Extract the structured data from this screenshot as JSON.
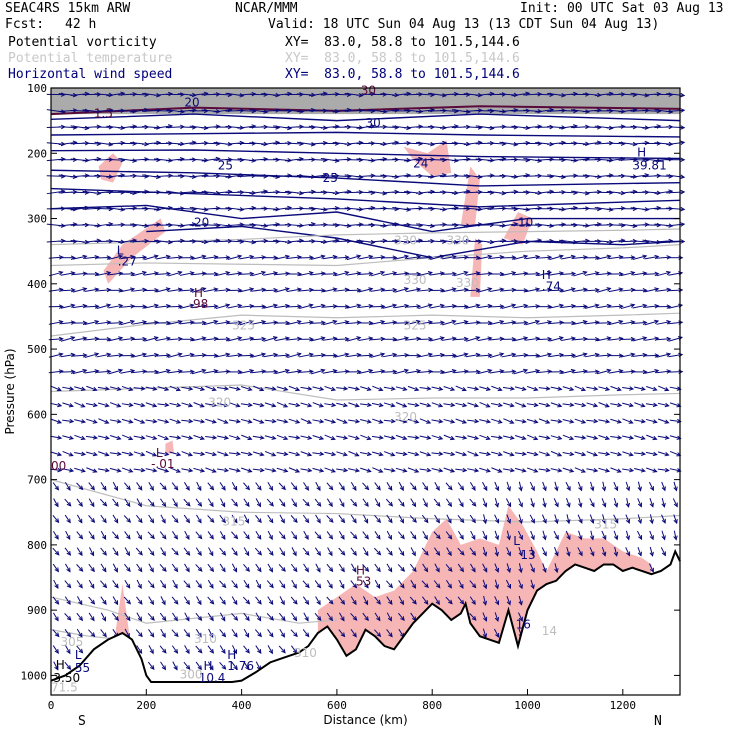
{
  "header": {
    "model": "SEAC4RS 15km ARW",
    "org": "NCAR/MMM",
    "init": "Init: 00 UTC Sat 03 Aug 13",
    "fcst_label": "Fcst:",
    "fcst_value": "42 h",
    "valid": "Valid: 18 UTC Sun 04 Aug 13 (13 CDT Sun 04 Aug 13)"
  },
  "fields": [
    {
      "name": "Potential vorticity",
      "xy": "XY=  83.0, 58.8 to 101.5,144.6",
      "color": "#000000"
    },
    {
      "name": "Potential temperature",
      "xy": "XY=  83.0, 58.8 to 101.5,144.6",
      "color": "#c8c8c8"
    },
    {
      "name": "Horizontal wind speed",
      "xy": "XY=  83.0, 58.8 to 101.5,144.6",
      "color": "#00007a"
    }
  ],
  "chart_data": {
    "type": "cross-section",
    "xlabel": "Distance (km)",
    "ylabel": "Pressure (hPa)",
    "xlim": [
      0,
      1320
    ],
    "ylim": [
      1030,
      100
    ],
    "x_ticks": [
      0,
      200,
      400,
      600,
      800,
      1000,
      1200
    ],
    "y_ticks": [
      100,
      200,
      300,
      400,
      500,
      600,
      700,
      800,
      900,
      1000
    ],
    "end_labels": {
      "left": "S",
      "right": "N"
    },
    "colors": {
      "wind": "#0a0a7a",
      "theta": "#bdbdbd",
      "pv_shade": "#f7b6b6",
      "terrain": "#000000",
      "pv_line": "#5a0a3a"
    },
    "terrain": [
      [
        0,
        1008
      ],
      [
        30,
        1000
      ],
      [
        60,
        985
      ],
      [
        90,
        960
      ],
      [
        120,
        945
      ],
      [
        150,
        935
      ],
      [
        170,
        945
      ],
      [
        190,
        975
      ],
      [
        200,
        1000
      ],
      [
        210,
        1010
      ],
      [
        260,
        1010
      ],
      [
        320,
        1010
      ],
      [
        380,
        1010
      ],
      [
        400,
        1008
      ],
      [
        430,
        995
      ],
      [
        460,
        980
      ],
      [
        480,
        975
      ],
      [
        500,
        970
      ],
      [
        520,
        965
      ],
      [
        540,
        955
      ],
      [
        560,
        935
      ],
      [
        580,
        925
      ],
      [
        600,
        945
      ],
      [
        620,
        970
      ],
      [
        640,
        960
      ],
      [
        660,
        930
      ],
      [
        680,
        940
      ],
      [
        700,
        955
      ],
      [
        720,
        960
      ],
      [
        740,
        940
      ],
      [
        760,
        920
      ],
      [
        780,
        905
      ],
      [
        800,
        890
      ],
      [
        820,
        900
      ],
      [
        840,
        915
      ],
      [
        860,
        905
      ],
      [
        870,
        890
      ],
      [
        880,
        920
      ],
      [
        900,
        940
      ],
      [
        920,
        945
      ],
      [
        940,
        950
      ],
      [
        960,
        900
      ],
      [
        980,
        955
      ],
      [
        1000,
        900
      ],
      [
        1020,
        870
      ],
      [
        1040,
        860
      ],
      [
        1060,
        855
      ],
      [
        1080,
        840
      ],
      [
        1100,
        830
      ],
      [
        1120,
        835
      ],
      [
        1140,
        840
      ],
      [
        1160,
        830
      ],
      [
        1180,
        830
      ],
      [
        1200,
        840
      ],
      [
        1220,
        835
      ],
      [
        1240,
        840
      ],
      [
        1260,
        845
      ],
      [
        1280,
        840
      ],
      [
        1300,
        830
      ],
      [
        1310,
        810
      ],
      [
        1320,
        825
      ]
    ],
    "theta_contours": [
      {
        "label": "330",
        "points": [
          [
            0,
            372
          ],
          [
            200,
            368
          ],
          [
            400,
            370
          ],
          [
            600,
            372
          ],
          [
            800,
            360
          ],
          [
            1000,
            350
          ],
          [
            1200,
            345
          ],
          [
            1320,
            340
          ]
        ]
      },
      {
        "label": "330",
        "points": [
          [
            0,
            340
          ],
          [
            200,
            336
          ],
          [
            400,
            332
          ],
          [
            600,
            325
          ],
          [
            800,
            322
          ],
          [
            1000,
            320
          ],
          [
            1200,
            318
          ],
          [
            1320,
            316
          ]
        ]
      },
      {
        "label": "325",
        "points": [
          [
            0,
            480
          ],
          [
            200,
            462
          ],
          [
            400,
            448
          ],
          [
            600,
            452
          ],
          [
            800,
            448
          ],
          [
            1000,
            452
          ],
          [
            1200,
            448
          ],
          [
            1320,
            445
          ]
        ]
      },
      {
        "label": "320",
        "points": [
          [
            0,
            565
          ],
          [
            200,
            560
          ],
          [
            400,
            555
          ],
          [
            600,
            578
          ],
          [
            800,
            575
          ],
          [
            1000,
            575
          ],
          [
            1200,
            570
          ],
          [
            1320,
            568
          ]
        ]
      },
      {
        "label": "315",
        "points": [
          [
            0,
            700
          ],
          [
            200,
            740
          ],
          [
            400,
            750
          ],
          [
            600,
            752
          ],
          [
            800,
            760
          ],
          [
            1000,
            765
          ],
          [
            1200,
            760
          ],
          [
            1320,
            755
          ]
        ]
      },
      {
        "label": "310",
        "points": [
          [
            0,
            880
          ],
          [
            120,
            900
          ],
          [
            200,
            920
          ],
          [
            400,
            905
          ],
          [
            520,
            920
          ],
          [
            600,
            915
          ]
        ]
      },
      {
        "label": "305",
        "points": [
          [
            0,
            930
          ],
          [
            80,
            940
          ],
          [
            150,
            945
          ]
        ]
      }
    ],
    "labels": [
      {
        "text": "30",
        "x": 650,
        "y": 110,
        "color": "#5a0a3a"
      },
      {
        "text": "20",
        "x": 280,
        "y": 128,
        "color": "#0a0a7a"
      },
      {
        "text": "1.5",
        "x": 90,
        "y": 145,
        "color": "#5a0a3a"
      },
      {
        "text": "30",
        "x": 660,
        "y": 160,
        "color": "#0a0a7a"
      },
      {
        "text": "25",
        "x": 350,
        "y": 225,
        "color": "#0a0a7a"
      },
      {
        "text": "25",
        "x": 570,
        "y": 244,
        "color": "#0a0a7a"
      },
      {
        "text": "20",
        "x": 300,
        "y": 312,
        "color": "#0a0a7a"
      },
      {
        "text": "24",
        "x": 760,
        "y": 222,
        "color": "#0a0a7a"
      },
      {
        "text": "10",
        "x": 980,
        "y": 312,
        "color": "#0a0a7a"
      },
      {
        "text": "H",
        "x": 1230,
        "y": 205,
        "color": "#0a0a7a"
      },
      {
        "text": "39.81",
        "x": 1220,
        "y": 225,
        "color": "#0a0a7a"
      },
      {
        "text": "L",
        "x": 138,
        "y": 355,
        "color": "#0a0a7a"
      },
      {
        "text": ".27",
        "x": 140,
        "y": 372,
        "color": "#0a0a7a"
      },
      {
        "text": "H",
        "x": 1030,
        "y": 393,
        "color": "#0a0a7a"
      },
      {
        "text": ".74",
        "x": 1030,
        "y": 410,
        "color": "#0a0a7a"
      },
      {
        "text": "H",
        "x": 300,
        "y": 420,
        "color": "#5a0a3a"
      },
      {
        "text": ".98",
        "x": 290,
        "y": 437,
        "color": "#5a0a3a"
      },
      {
        "text": "330",
        "x": 720,
        "y": 340,
        "color": "#bdbdbd"
      },
      {
        "text": "330",
        "x": 830,
        "y": 340,
        "color": "#bdbdbd"
      },
      {
        "text": "330",
        "x": 740,
        "y": 400,
        "color": "#bdbdbd"
      },
      {
        "text": "330",
        "x": 850,
        "y": 405,
        "color": "#bdbdbd"
      },
      {
        "text": "325",
        "x": 380,
        "y": 470,
        "color": "#bdbdbd"
      },
      {
        "text": "325",
        "x": 740,
        "y": 470,
        "color": "#bdbdbd"
      },
      {
        "text": "320",
        "x": 330,
        "y": 588,
        "color": "#bdbdbd"
      },
      {
        "text": "320",
        "x": 720,
        "y": 610,
        "color": "#bdbdbd"
      },
      {
        "text": "315",
        "x": 360,
        "y": 770,
        "color": "#bdbdbd"
      },
      {
        "text": "315",
        "x": 1140,
        "y": 775,
        "color": "#bdbdbd"
      },
      {
        "text": "L",
        "x": 220,
        "y": 665,
        "color": "#5a0a3a"
      },
      {
        "text": "-.01",
        "x": 210,
        "y": 682,
        "color": "#5a0a3a"
      },
      {
        "text": "00",
        "x": 0,
        "y": 685,
        "color": "#5a0a3a"
      },
      {
        "text": "H",
        "x": 640,
        "y": 845,
        "color": "#5a0a3a"
      },
      {
        "text": "53",
        "x": 640,
        "y": 862,
        "color": "#5a0a3a"
      },
      {
        "text": "L",
        "x": 970,
        "y": 800,
        "color": "#0a0a7a"
      },
      {
        "text": "13",
        "x": 985,
        "y": 822,
        "color": "#0a0a7a"
      },
      {
        "text": "16",
        "x": 975,
        "y": 928,
        "color": "#0a0a7a"
      },
      {
        "text": "14",
        "x": 1030,
        "y": 938,
        "color": "#bdbdbd"
      },
      {
        "text": "310",
        "x": 300,
        "y": 950,
        "color": "#bdbdbd"
      },
      {
        "text": "310",
        "x": 510,
        "y": 972,
        "color": "#bdbdbd"
      },
      {
        "text": "305",
        "x": 20,
        "y": 955,
        "color": "#bdbdbd"
      },
      {
        "text": "H",
        "x": 370,
        "y": 975,
        "color": "#0a0a7a"
      },
      {
        "text": "1.76",
        "x": 370,
        "y": 992,
        "color": "#0a0a7a"
      },
      {
        "text": "H",
        "x": 320,
        "y": 992,
        "color": "#0a0a7a"
      },
      {
        "text": "10.4",
        "x": 310,
        "y": 1010,
        "color": "#0a0a7a"
      },
      {
        "text": "300",
        "x": 270,
        "y": 1005,
        "color": "#bdbdbd"
      },
      {
        "text": "H",
        "x": 10,
        "y": 990,
        "color": "#000000"
      },
      {
        "text": "3.50",
        "x": 5,
        "y": 1010,
        "color": "#000000"
      },
      {
        "text": "L",
        "x": 50,
        "y": 975,
        "color": "#0a0a7a"
      },
      {
        "text": "55",
        "x": 50,
        "y": 995,
        "color": "#0a0a7a"
      },
      {
        "text": "71.5",
        "x": 0,
        "y": 1025,
        "color": "#bdbdbd"
      }
    ]
  }
}
